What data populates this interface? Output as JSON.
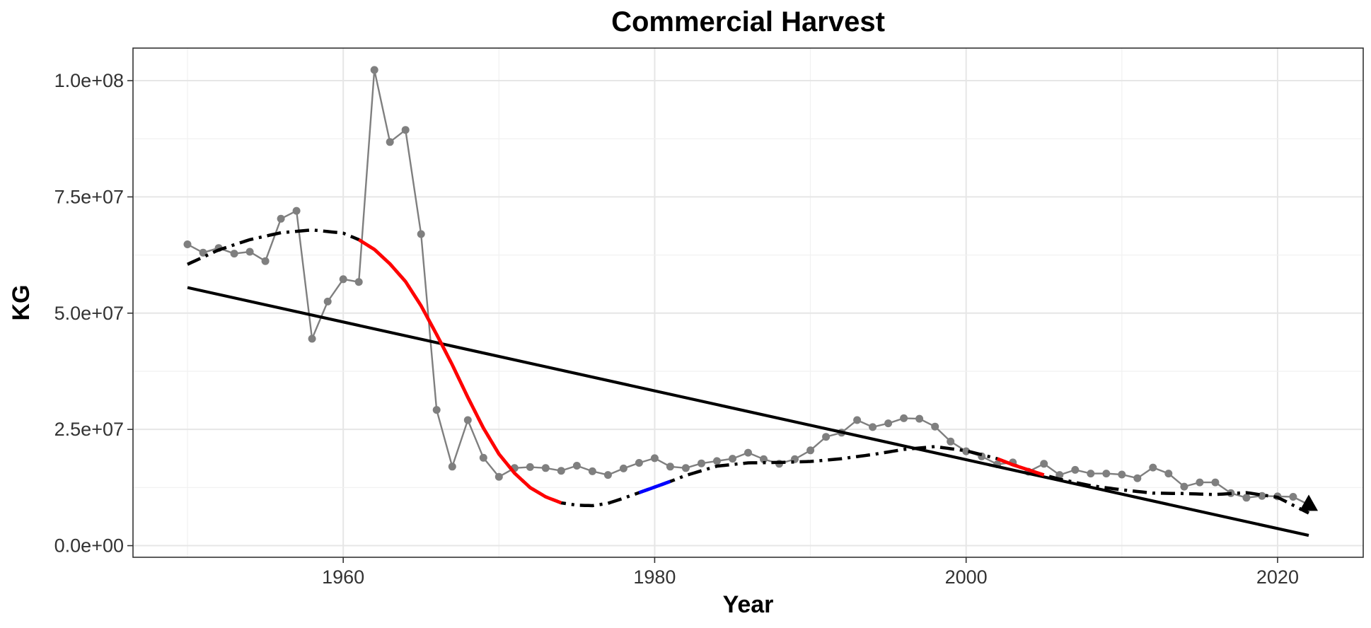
{
  "chart_data": {
    "type": "line",
    "title": "Commercial Harvest",
    "xlabel": "Year",
    "ylabel": "KG",
    "xlim": [
      1946.5,
      2025.5
    ],
    "ylim": [
      -2500000,
      107000000
    ],
    "x_ticks": [
      1960,
      1980,
      2000,
      2020
    ],
    "x_tick_labels": [
      "1960",
      "1980",
      "2000",
      "2020"
    ],
    "y_ticks": [
      0,
      25000000,
      50000000,
      75000000,
      100000000
    ],
    "y_tick_labels": [
      "0.0e+00",
      "2.5e+07",
      "5.0e+07",
      "7.5e+07",
      "1.0e+08"
    ],
    "grid": true,
    "legend": "none",
    "colors": {
      "observed": "#7f7f7f",
      "trend": "#000000",
      "smooth": "#000000",
      "decreasing": "#ff0000",
      "increasing": "#0000ff"
    },
    "series": [
      {
        "kind": "observed",
        "x": [
          1950,
          1951,
          1952,
          1953,
          1954,
          1955,
          1956,
          1957,
          1958,
          1959,
          1960,
          1961,
          1962,
          1963,
          1964,
          1965,
          1966,
          1967,
          1968,
          1969,
          1970,
          1971,
          1972,
          1973,
          1974,
          1975,
          1976,
          1977,
          1978,
          1979,
          1980,
          1981,
          1982,
          1983,
          1984,
          1985,
          1986,
          1987,
          1988,
          1989,
          1990,
          1991,
          1992,
          1993,
          1994,
          1995,
          1996,
          1997,
          1998,
          1999,
          2000,
          2001,
          2002,
          2003,
          2004,
          2005,
          2006,
          2007,
          2008,
          2009,
          2010,
          2011,
          2012,
          2013,
          2014,
          2015,
          2016,
          2017,
          2018,
          2019,
          2020,
          2021,
          2022
        ],
        "y": [
          64800000,
          63000000,
          64000000,
          62800000,
          63200000,
          61200000,
          70300000,
          72000000,
          44500000,
          52500000,
          57300000,
          56700000,
          102300000,
          86800000,
          89400000,
          67000000,
          29200000,
          17000000,
          27000000,
          18900000,
          14800000,
          16700000,
          16900000,
          16700000,
          16100000,
          17200000,
          16000000,
          15200000,
          16600000,
          17800000,
          18800000,
          17000000,
          16700000,
          17700000,
          18200000,
          18700000,
          20000000,
          18600000,
          17600000,
          18600000,
          20500000,
          23400000,
          24300000,
          27000000,
          25500000,
          26300000,
          27400000,
          27300000,
          25600000,
          22400000,
          20300000,
          19200000,
          17500000,
          17900000,
          15900000,
          17600000,
          15200000,
          16300000,
          15500000,
          15500000,
          15300000,
          14500000,
          16800000,
          15500000,
          12700000,
          13600000,
          13600000,
          11300000,
          10300000,
          10700000,
          10600000,
          10500000,
          8800000
        ]
      },
      {
        "kind": "linear-trend",
        "x": [
          1950,
          2022
        ],
        "y": [
          55500000,
          2200000
        ]
      },
      {
        "kind": "smooth",
        "x": [
          1950,
          1952,
          1954,
          1956,
          1958,
          1960,
          1961,
          1962,
          1963,
          1964,
          1965,
          1966,
          1967,
          1968,
          1969,
          1970,
          1971,
          1972,
          1973,
          1974,
          1975,
          1976,
          1977,
          1978,
          1979,
          1980,
          1981,
          1982,
          1984,
          1986,
          1988,
          1990,
          1992,
          1994,
          1996,
          1998,
          2000,
          2002,
          2003,
          2004,
          2005,
          2006,
          2008,
          2010,
          2012,
          2014,
          2016,
          2018,
          2020,
          2022
        ],
        "y": [
          60500000,
          63600000,
          65800000,
          67300000,
          67900000,
          67200000,
          65800000,
          63700000,
          60600000,
          56800000,
          51600000,
          45400000,
          38900000,
          31900000,
          25300000,
          19700000,
          15600000,
          12500000,
          10500000,
          9200000,
          8700000,
          8600000,
          9100000,
          10200000,
          11400000,
          12600000,
          13800000,
          15100000,
          17100000,
          17800000,
          17900000,
          18100000,
          18700000,
          19600000,
          20700000,
          21300000,
          20400000,
          18700000,
          17400000,
          16300000,
          15200000,
          14300000,
          12900000,
          12000000,
          11300000,
          11200000,
          11000000,
          11400000,
          10400000,
          7000000
        ]
      },
      {
        "kind": "decreasing-segment",
        "x_range": [
          1961,
          1974
        ]
      },
      {
        "kind": "increasing-segment",
        "x_range": [
          1979,
          1981
        ]
      },
      {
        "kind": "decreasing-segment",
        "x_range": [
          2002,
          2005
        ]
      }
    ],
    "annotations": [
      {
        "marker": "triangle",
        "x": 2022,
        "y": 9000000
      }
    ]
  }
}
